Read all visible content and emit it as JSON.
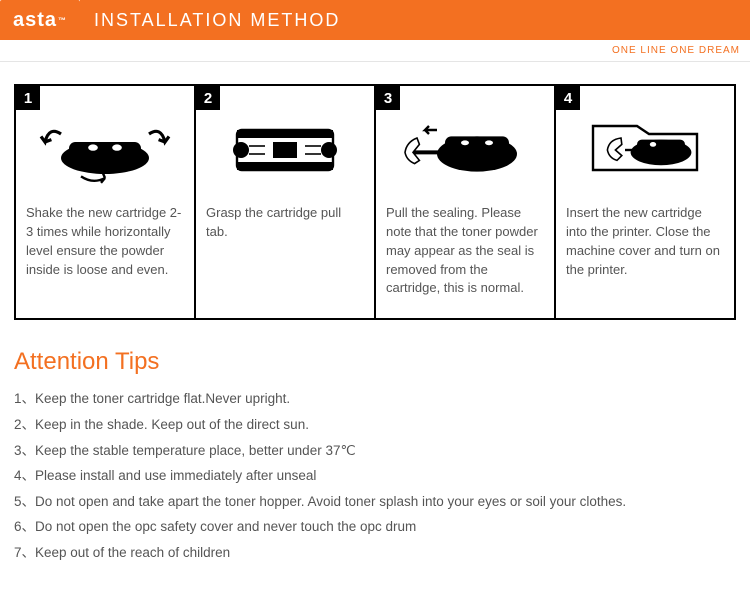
{
  "header": {
    "logo": "asta",
    "tm": "™",
    "title": "INSTALLATION METHOD",
    "tagline": "ONE LINE ONE DREAM",
    "brand_color": "#f37021",
    "text_gray": "#555555"
  },
  "steps": [
    {
      "num": "1",
      "caption": "Shake the new cartridge 2-3 times while horizontally level ensure the powder inside is loose and even."
    },
    {
      "num": "2",
      "caption": "Grasp the cartridge pull tab."
    },
    {
      "num": "3",
      "caption": "Pull the sealing. Please note that the toner powder may appear as the seal is removed from the cartridge, this is normal."
    },
    {
      "num": "4",
      "caption": "Insert the new cartridge into the printer. Close the machine cover and turn on the printer."
    }
  ],
  "tips": {
    "title": "Attention Tips",
    "items": [
      "Keep the toner cartridge flat.Never upright.",
      "Keep in the shade. Keep out of the direct sun.",
      "Keep the stable temperature place, better under 37℃",
      "Please install and use immediately after unseal",
      "Do not open and take apart the toner hopper. Avoid toner splash into your eyes or soil your clothes.",
      "Do not open the opc safety cover and never touch the opc drum",
      "Keep out of the reach of children"
    ]
  }
}
